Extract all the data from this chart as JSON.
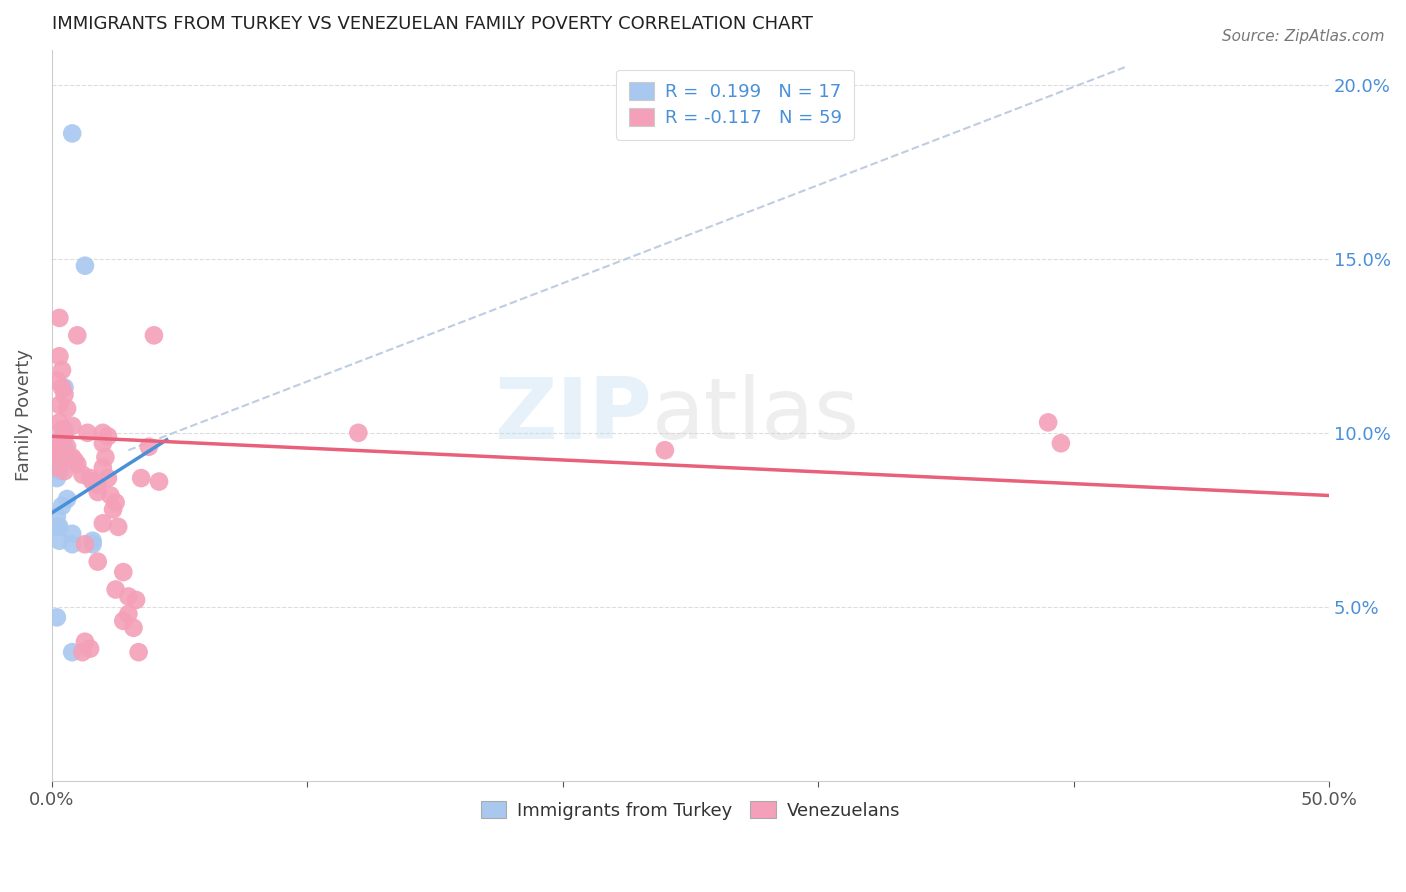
{
  "title": "IMMIGRANTS FROM TURKEY VS VENEZUELAN FAMILY POVERTY CORRELATION CHART",
  "source": "Source: ZipAtlas.com",
  "ylabel": "Family Poverty",
  "xlim": [
    0.0,
    0.5
  ],
  "ylim": [
    0.0,
    0.21
  ],
  "xticks": [
    0.0,
    0.1,
    0.2,
    0.3,
    0.4,
    0.5
  ],
  "xticklabels": [
    "0.0%",
    "",
    "",
    "",
    "",
    "50.0%"
  ],
  "yticks": [
    0.05,
    0.1,
    0.15,
    0.2
  ],
  "yticklabels_right": [
    "5.0%",
    "10.0%",
    "15.0%",
    "20.0%"
  ],
  "blue_color": "#a8c8f0",
  "pink_color": "#f4a0b8",
  "blue_line_color": "#4a90d9",
  "pink_line_color": "#e8607a",
  "dashed_line_color": "#b8c8e0",
  "watermark_zip": "ZIP",
  "watermark_atlas": "atlas",
  "blue_line_x": [
    0.0,
    0.045
  ],
  "blue_line_y": [
    0.077,
    0.098
  ],
  "pink_line_x": [
    0.0,
    0.5
  ],
  "pink_line_y": [
    0.099,
    0.082
  ],
  "dashed_line_x": [
    0.03,
    0.42
  ],
  "dashed_line_y": [
    0.095,
    0.205
  ],
  "turkey_points": [
    [
      0.008,
      0.186
    ],
    [
      0.013,
      0.148
    ],
    [
      0.005,
      0.113
    ],
    [
      0.005,
      0.101
    ],
    [
      0.004,
      0.099
    ],
    [
      0.005,
      0.096
    ],
    [
      0.003,
      0.093
    ],
    [
      0.004,
      0.092
    ],
    [
      0.003,
      0.089
    ],
    [
      0.002,
      0.087
    ],
    [
      0.006,
      0.081
    ],
    [
      0.004,
      0.079
    ],
    [
      0.002,
      0.076
    ],
    [
      0.003,
      0.073
    ],
    [
      0.008,
      0.071
    ],
    [
      0.016,
      0.069
    ],
    [
      0.002,
      0.073
    ],
    [
      0.003,
      0.069
    ],
    [
      0.008,
      0.068
    ],
    [
      0.016,
      0.068
    ],
    [
      0.002,
      0.047
    ],
    [
      0.008,
      0.037
    ]
  ],
  "venezuela_points": [
    [
      0.003,
      0.133
    ],
    [
      0.01,
      0.128
    ],
    [
      0.04,
      0.128
    ],
    [
      0.003,
      0.122
    ],
    [
      0.004,
      0.118
    ],
    [
      0.002,
      0.115
    ],
    [
      0.004,
      0.113
    ],
    [
      0.005,
      0.111
    ],
    [
      0.003,
      0.108
    ],
    [
      0.006,
      0.107
    ],
    [
      0.003,
      0.103
    ],
    [
      0.008,
      0.102
    ],
    [
      0.004,
      0.101
    ],
    [
      0.005,
      0.099
    ],
    [
      0.002,
      0.097
    ],
    [
      0.006,
      0.096
    ],
    [
      0.001,
      0.095
    ],
    [
      0.003,
      0.094
    ],
    [
      0.008,
      0.093
    ],
    [
      0.009,
      0.092
    ],
    [
      0.01,
      0.091
    ],
    [
      0.002,
      0.09
    ],
    [
      0.005,
      0.089
    ],
    [
      0.012,
      0.088
    ],
    [
      0.015,
      0.087
    ],
    [
      0.016,
      0.086
    ],
    [
      0.018,
      0.085
    ],
    [
      0.014,
      0.1
    ],
    [
      0.02,
      0.1
    ],
    [
      0.022,
      0.099
    ],
    [
      0.02,
      0.097
    ],
    [
      0.021,
      0.093
    ],
    [
      0.02,
      0.09
    ],
    [
      0.022,
      0.087
    ],
    [
      0.018,
      0.083
    ],
    [
      0.023,
      0.082
    ],
    [
      0.025,
      0.08
    ],
    [
      0.024,
      0.078
    ],
    [
      0.02,
      0.074
    ],
    [
      0.026,
      0.073
    ],
    [
      0.018,
      0.063
    ],
    [
      0.028,
      0.06
    ],
    [
      0.025,
      0.055
    ],
    [
      0.03,
      0.053
    ],
    [
      0.033,
      0.052
    ],
    [
      0.03,
      0.048
    ],
    [
      0.028,
      0.046
    ],
    [
      0.032,
      0.044
    ],
    [
      0.015,
      0.038
    ],
    [
      0.034,
      0.037
    ],
    [
      0.038,
      0.096
    ],
    [
      0.035,
      0.087
    ],
    [
      0.042,
      0.086
    ],
    [
      0.012,
      0.037
    ],
    [
      0.39,
      0.103
    ],
    [
      0.395,
      0.097
    ],
    [
      0.12,
      0.1
    ],
    [
      0.24,
      0.095
    ],
    [
      0.013,
      0.068
    ],
    [
      0.013,
      0.04
    ]
  ]
}
